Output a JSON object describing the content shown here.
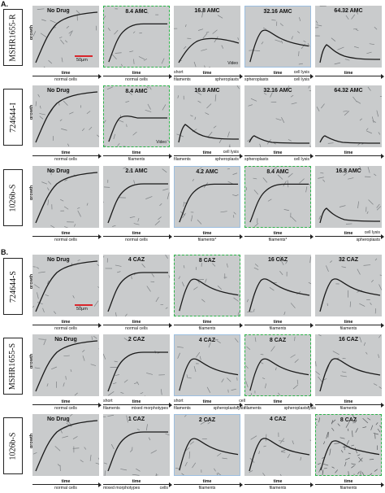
{
  "sections": [
    {
      "label": "A.",
      "strains": [
        {
          "name": "MSHR1655-R",
          "panels": [
            {
              "title": "No Drug",
              "frame": "none",
              "title_left": true,
              "curve": "rise",
              "scale": "50μm",
              "axis": [
                {
                  "text": "normal cells",
                  "pos": "c"
                }
              ]
            },
            {
              "title": "8.4 AMC",
              "frame": "green",
              "curve": "sat",
              "axis": [
                {
                  "text": "normal cells",
                  "pos": "c"
                }
              ]
            },
            {
              "title": "16.8 AMC",
              "frame": "none",
              "curve": "low",
              "video": "Video",
              "axis": [
                {
                  "text": "short",
                  "pos": "l",
                  "super": true
                },
                {
                  "text": "filaments",
                  "pos": "l"
                },
                {
                  "text": "spheroplasts",
                  "pos": "r"
                }
              ]
            },
            {
              "title": "32.16 AMC",
              "frame": "blue",
              "curve": "peak",
              "axis": [
                {
                  "text": "cell lysis",
                  "pos": "r",
                  "super": true
                },
                {
                  "text": "spheroplasts",
                  "pos": "l"
                },
                {
                  "text": "cell lysis",
                  "pos": "r"
                }
              ]
            },
            {
              "title": "64.32 AMC",
              "frame": "none",
              "curve": "spike",
              "axis": []
            }
          ]
        },
        {
          "name": "724644-I",
          "panels": [
            {
              "title": "No Drug",
              "frame": "none",
              "title_left": true,
              "curve": "rise",
              "axis": [
                {
                  "text": "normal cells",
                  "pos": "c"
                }
              ]
            },
            {
              "title": "8.4 AMC",
              "frame": "green",
              "curve": "hump",
              "video": "Video",
              "axis": [
                {
                  "text": "filaments",
                  "pos": "c"
                }
              ]
            },
            {
              "title": "16.8 AMC",
              "frame": "none",
              "curve": "spike",
              "axis": [
                {
                  "text": "filaments",
                  "pos": "l"
                },
                {
                  "text": "cell lysis",
                  "pos": "r",
                  "super": true
                },
                {
                  "text": "spheroplasts",
                  "pos": "r"
                }
              ]
            },
            {
              "title": "32.16 AMC",
              "frame": "none",
              "curve": "small",
              "axis": [
                {
                  "text": "spheroplasts",
                  "pos": "l"
                },
                {
                  "text": "cell lysis",
                  "pos": "r"
                }
              ]
            },
            {
              "title": "64.32 AMC",
              "frame": "none",
              "curve": "small",
              "axis": []
            }
          ]
        },
        {
          "name": "1026b-S",
          "panels": [
            {
              "title": "No Drug",
              "frame": "none",
              "title_left": true,
              "curve": "rise",
              "axis": [
                {
                  "text": "normal cells",
                  "pos": "c"
                }
              ]
            },
            {
              "title": "2.1 AMC",
              "frame": "none",
              "curve": "sat",
              "axis": [
                {
                  "text": "normal cells",
                  "pos": "c"
                }
              ]
            },
            {
              "title": "4.2 AMC",
              "frame": "blue",
              "curve": "sat",
              "axis": [
                {
                  "text": "filaments*",
                  "pos": "c"
                }
              ]
            },
            {
              "title": "8.4 AMC",
              "frame": "green",
              "curve": "sat",
              "axis": [
                {
                  "text": "filaments*",
                  "pos": "c"
                }
              ]
            },
            {
              "title": "16.8 AMC",
              "frame": "none",
              "curve": "lowspike",
              "axis": [
                {
                  "text": "cell lysis",
                  "pos": "r",
                  "super": true
                },
                {
                  "text": "spheroplasts",
                  "pos": "r"
                }
              ]
            }
          ]
        }
      ]
    },
    {
      "label": "B.",
      "strains": [
        {
          "name": "724644-S",
          "panels": [
            {
              "title": "No Drug",
              "frame": "none",
              "title_left": true,
              "curve": "rise",
              "scale": "50μm",
              "axis": [
                {
                  "text": "normal cells",
                  "pos": "c"
                }
              ]
            },
            {
              "title": "4 CAZ",
              "frame": "none",
              "curve": "sat",
              "axis": [
                {
                  "text": "normal cells",
                  "pos": "c"
                }
              ]
            },
            {
              "title": "8 CAZ",
              "frame": "green",
              "curve": "peak",
              "axis": [
                {
                  "text": "filaments",
                  "pos": "c"
                }
              ]
            },
            {
              "title": "16 CAZ",
              "frame": "none",
              "curve": "peak",
              "axis": [
                {
                  "text": "filaments",
                  "pos": "c"
                }
              ]
            },
            {
              "title": "32 CAZ",
              "frame": "none",
              "curve": "peak",
              "axis": [
                {
                  "text": "filaments",
                  "pos": "c"
                }
              ]
            }
          ]
        },
        {
          "name": "MSHR1655-S",
          "panels": [
            {
              "title": "No Drug",
              "frame": "none",
              "curve": "rise",
              "axis": [
                {
                  "text": "normal cells",
                  "pos": "c"
                }
              ]
            },
            {
              "title": "2 CAZ",
              "frame": "none",
              "curve": "sat",
              "axis": [
                {
                  "text": "short",
                  "pos": "l",
                  "super": true
                },
                {
                  "text": "filaments",
                  "pos": "l"
                },
                {
                  "text": "mixed morphotypes",
                  "pos": "r"
                }
              ]
            },
            {
              "title": "4 CAZ",
              "frame": "blue",
              "curve": "peak",
              "axis": [
                {
                  "text": "short",
                  "pos": "l",
                  "super": true
                },
                {
                  "text": "filaments",
                  "pos": "l"
                },
                {
                  "text": "spheroplasts*",
                  "pos": "r"
                },
                {
                  "text": "cell",
                  "pos": "rr",
                  "super": true
                },
                {
                  "text": "lysis",
                  "pos": "rr"
                }
              ]
            },
            {
              "title": "8 CAZ",
              "frame": "green",
              "curve": "peak",
              "axis": [
                {
                  "text": "filaments",
                  "pos": "l"
                },
                {
                  "text": "spheroplasts*",
                  "pos": "r"
                },
                {
                  "text": "lysis",
                  "pos": "rr"
                }
              ]
            },
            {
              "title": "16 CAZ",
              "frame": "none",
              "curve": "peak",
              "axis": [
                {
                  "text": "filaments",
                  "pos": "c"
                }
              ]
            }
          ]
        },
        {
          "name": "1026b-S",
          "panels": [
            {
              "title": "No Drug",
              "frame": "none",
              "title_left": true,
              "curve": "rise",
              "axis": [
                {
                  "text": "normal cells",
                  "pos": "c"
                }
              ]
            },
            {
              "title": "1 CAZ",
              "frame": "none",
              "curve": "sat",
              "axis": [
                {
                  "text": "mixed morphotypes",
                  "pos": "l"
                },
                {
                  "text": "cells",
                  "pos": "r"
                }
              ]
            },
            {
              "title": "2 CAZ",
              "frame": "blue",
              "curve": "peak",
              "axis": [
                {
                  "text": "filaments",
                  "pos": "c"
                }
              ]
            },
            {
              "title": "4 CAZ",
              "frame": "none",
              "curve": "peak",
              "axis": [
                {
                  "text": "filaments",
                  "pos": "c"
                }
              ]
            },
            {
              "title": "8 CAZ",
              "frame": "green",
              "curve": "dense",
              "axis": [
                {
                  "text": "filaments",
                  "pos": "c"
                }
              ]
            }
          ]
        }
      ]
    }
  ],
  "labels": {
    "growth": "growth",
    "time": "time"
  },
  "colors": {
    "green_frame": "#2db34a",
    "blue_frame": "#9cbfe0",
    "scale_bar": "#d9262c"
  }
}
